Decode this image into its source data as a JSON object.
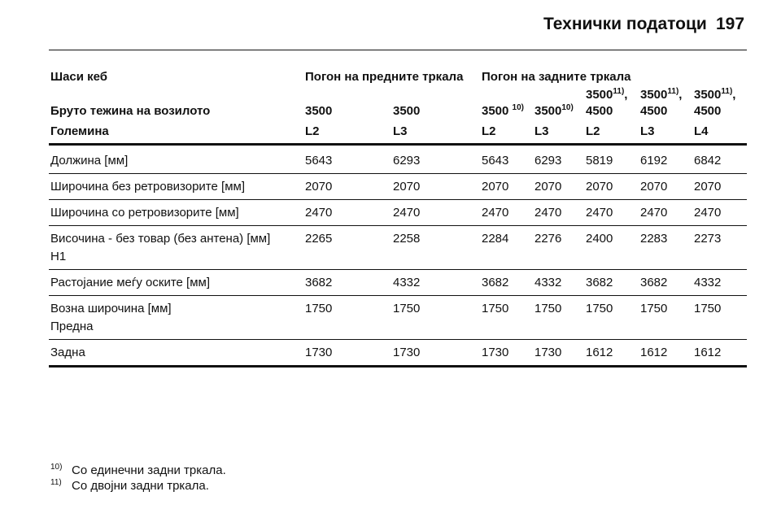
{
  "header": {
    "title": "Технички податоци",
    "page": "197"
  },
  "table": {
    "chassis_label": "Шаси кеб",
    "drive_front": "Погон на предните тркала",
    "drive_rear": "Погон на задните тркала",
    "weight_label": "Бруто тежина на возилото",
    "weights": [
      {
        "value": "3500"
      },
      {
        "value": "3500"
      },
      {
        "value": "3500",
        "note": "10)"
      },
      {
        "value": "3500",
        "note": "10)"
      },
      {
        "value": "3500",
        "note": "11)",
        "sep": ",",
        "line2": "4500"
      },
      {
        "value": "3500",
        "note": "11)",
        "sep": ",",
        "line2": "4500"
      },
      {
        "value": "3500",
        "note": "11)",
        "sep": ",",
        "line2": "4500"
      }
    ],
    "size_label": "Големина",
    "sizes": [
      "L2",
      "L3",
      "L2",
      "L3",
      "L2",
      "L3",
      "L4"
    ],
    "rows": [
      {
        "label": [
          "Должина [мм]"
        ],
        "values": [
          5643,
          6293,
          5643,
          6293,
          5819,
          6192,
          6842
        ]
      },
      {
        "label": [
          "Широчина без ретровизорите [мм]"
        ],
        "values": [
          2070,
          2070,
          2070,
          2070,
          2070,
          2070,
          2070
        ]
      },
      {
        "label": [
          "Широчина со ретровизорите [мм]"
        ],
        "values": [
          2470,
          2470,
          2470,
          2470,
          2470,
          2470,
          2470
        ]
      },
      {
        "label": [
          "Височина - без товар (без антена) [мм]",
          "Н1"
        ],
        "values": [
          2265,
          2258,
          2284,
          2276,
          2400,
          2283,
          2273
        ]
      },
      {
        "label": [
          "Растојание меѓу оските [мм]"
        ],
        "values": [
          3682,
          4332,
          3682,
          4332,
          3682,
          3682,
          4332
        ]
      },
      {
        "label": [
          "Возна широчина [мм]",
          "Предна"
        ],
        "values": [
          1750,
          1750,
          1750,
          1750,
          1750,
          1750,
          1750
        ]
      },
      {
        "label": [
          "Задна"
        ],
        "values": [
          1730,
          1730,
          1730,
          1730,
          1612,
          1612,
          1612
        ]
      }
    ]
  },
  "footnotes": [
    {
      "mark": "10)",
      "text": "Со единечни задни тркала."
    },
    {
      "mark": "11)",
      "text": "Со двојни задни тркала."
    }
  ]
}
